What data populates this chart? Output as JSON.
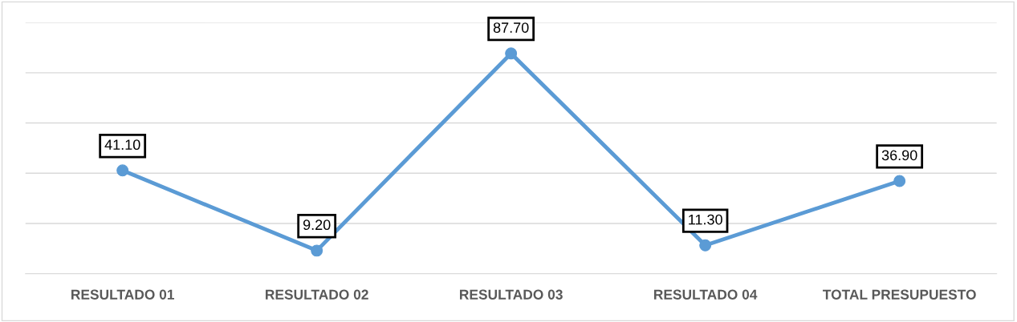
{
  "chart_data": {
    "type": "line",
    "categories": [
      "RESULTADO 01",
      "RESULTADO 02",
      "RESULTADO 03",
      "RESULTADO 04",
      "TOTAL PRESUPUESTO"
    ],
    "series": [
      {
        "color": "#5b9bd5",
        "values": [
          41.1,
          9.2,
          87.7,
          11.3,
          36.9
        ],
        "value_labels": [
          "41.10",
          "9.20",
          "87.70",
          "11.30",
          "36.90"
        ]
      }
    ],
    "ylim": [
      0,
      100
    ],
    "yticks": [
      {
        "value": 0,
        "label": null
      },
      {
        "value": 20,
        "label": null
      },
      {
        "value": 40,
        "label": null
      },
      {
        "value": 60,
        "label": null
      },
      {
        "value": 80,
        "label": null
      },
      {
        "value": 100,
        "label": null
      }
    ],
    "tick_labels": "x",
    "grid": "y",
    "marker": "circle",
    "line_style": "solid",
    "legend": false
  }
}
